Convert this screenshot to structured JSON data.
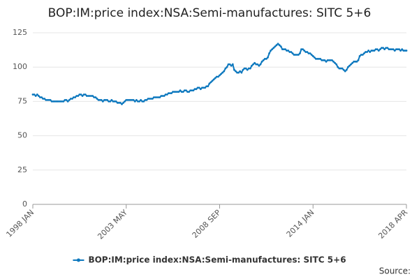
{
  "chart_data": {
    "type": "line",
    "title": "BOP:IM:price index:NSA:Semi-manufactures: SITC 5+6",
    "source_label": "Source:",
    "categories": [
      "1998 JAN",
      null,
      null,
      null,
      null,
      null,
      null,
      null,
      null,
      null,
      null,
      null,
      null,
      null,
      null,
      null,
      null,
      null,
      null,
      null,
      null,
      null,
      null,
      null,
      null,
      null,
      null,
      null,
      null,
      null,
      null,
      null,
      null,
      null,
      null,
      null,
      null,
      null,
      null,
      null,
      null,
      null,
      null,
      null,
      null,
      null,
      null,
      null,
      null,
      null,
      null,
      null,
      null,
      null,
      null,
      null,
      null,
      null,
      null,
      null,
      null,
      null,
      null,
      null,
      "2003 MAY",
      null,
      null,
      null,
      null,
      null,
      null,
      null,
      null,
      null,
      null,
      null,
      null,
      null,
      null,
      null,
      null,
      null,
      null,
      null,
      null,
      null,
      null,
      null,
      null,
      null,
      null,
      null,
      null,
      null,
      null,
      null,
      null,
      null,
      null,
      null,
      null,
      null,
      null,
      null,
      null,
      null,
      null,
      null,
      null,
      null,
      null,
      null,
      null,
      null,
      null,
      null,
      null,
      null,
      null,
      null,
      null,
      null,
      null,
      null,
      null,
      null,
      null,
      null,
      "2008 SEP",
      null,
      null,
      null,
      null,
      null,
      null,
      null,
      null,
      null,
      null,
      null,
      null,
      null,
      null,
      null,
      null,
      null,
      null,
      null,
      null,
      null,
      null,
      null,
      null,
      null,
      null,
      null,
      null,
      null,
      null,
      null,
      null,
      null,
      null,
      null,
      null,
      null,
      null,
      null,
      null,
      null,
      null,
      null,
      null,
      null,
      null,
      null,
      null,
      null,
      null,
      null,
      null,
      null,
      null,
      null,
      null,
      null,
      null,
      null,
      null,
      null,
      null,
      null,
      "2014 JAN",
      null,
      null,
      null,
      null,
      null,
      null,
      null,
      null,
      null,
      null,
      null,
      null,
      null,
      null,
      null,
      null,
      null,
      null,
      null,
      null,
      null,
      null,
      null,
      null,
      null,
      null,
      null,
      null,
      null,
      null,
      null,
      null,
      null,
      null,
      null,
      null,
      null,
      null,
      null,
      null,
      null,
      null,
      null,
      null,
      null,
      null,
      null,
      null,
      null,
      null,
      null,
      null,
      null,
      null,
      null,
      null,
      null,
      null,
      null,
      null,
      null,
      null,
      null,
      "2018 APR"
    ],
    "series": [
      {
        "name": "BOP:IM:price index:NSA:Semi-manufactures: SITC 5+6",
        "color": "#0d78be",
        "values": [
          80,
          80,
          79,
          80,
          79,
          78,
          78,
          77,
          77,
          76,
          76,
          76,
          76,
          75,
          75,
          75,
          75,
          75,
          75,
          75,
          75,
          75,
          76,
          76,
          75,
          76,
          77,
          77,
          78,
          78,
          79,
          79,
          80,
          80,
          79,
          80,
          80,
          79,
          79,
          79,
          79,
          79,
          78,
          78,
          77,
          76,
          76,
          76,
          75,
          76,
          76,
          76,
          75,
          75,
          76,
          75,
          75,
          75,
          74,
          74,
          74,
          73,
          74,
          75,
          76,
          76,
          76,
          76,
          76,
          76,
          75,
          76,
          75,
          75,
          76,
          75,
          75,
          76,
          76,
          77,
          77,
          77,
          77,
          78,
          78,
          78,
          78,
          78,
          79,
          79,
          79,
          80,
          80,
          81,
          81,
          81,
          82,
          82,
          82,
          82,
          82,
          83,
          82,
          82,
          83,
          83,
          82,
          82,
          83,
          83,
          83,
          84,
          84,
          85,
          85,
          84,
          85,
          85,
          85,
          86,
          86,
          88,
          89,
          90,
          91,
          92,
          93,
          93,
          94,
          95,
          96,
          97,
          99,
          100,
          102,
          102,
          101,
          102,
          98,
          97,
          96,
          96,
          97,
          96,
          98,
          99,
          99,
          98,
          99,
          99,
          101,
          102,
          103,
          102,
          102,
          101,
          102,
          104,
          105,
          106,
          106,
          107,
          110,
          112,
          113,
          114,
          115,
          116,
          117,
          116,
          115,
          113,
          113,
          113,
          112,
          112,
          111,
          111,
          110,
          109,
          109,
          109,
          109,
          110,
          113,
          113,
          112,
          111,
          111,
          110,
          110,
          109,
          108,
          107,
          106,
          106,
          106,
          106,
          105,
          105,
          105,
          104,
          105,
          105,
          105,
          105,
          104,
          103,
          102,
          100,
          99,
          99,
          99,
          98,
          97,
          98,
          100,
          101,
          102,
          103,
          104,
          104,
          104,
          105,
          108,
          109,
          109,
          110,
          111,
          111,
          112,
          111,
          112,
          112,
          112,
          113,
          113,
          112,
          113,
          114,
          114,
          113,
          114,
          114,
          113,
          113,
          113,
          113,
          112,
          113,
          113,
          113,
          112,
          113,
          112,
          112,
          112
        ]
      }
    ],
    "ylim": [
      0,
      125
    ],
    "yticks": [
      0,
      25,
      50,
      75,
      100,
      125
    ],
    "grid": true,
    "legend": "bottom"
  }
}
